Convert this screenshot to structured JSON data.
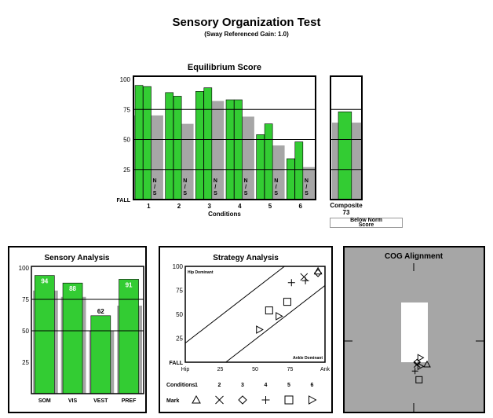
{
  "header": {
    "title": "Sensory Organization Test",
    "subtitle": "(Sway Referenced Gain: 1.0)"
  },
  "colors": {
    "green": "#33cc33",
    "gray": "#a6a6a6",
    "white": "#ffffff",
    "black": "#000000"
  },
  "chart_data": [
    {
      "id": "equilibrium",
      "type": "bar",
      "title": "Equilibrium Score",
      "xlabel": "Conditions",
      "ylabel": "",
      "ylim": [
        0,
        100
      ],
      "y_ticks": [
        "100",
        "75",
        "50",
        "25",
        "FALL"
      ],
      "grid_lines": [
        75,
        50,
        25
      ],
      "categories": [
        "1",
        "2",
        "3",
        "4",
        "5",
        "6"
      ],
      "series": [
        {
          "values": [
            [
              95,
              94
            ],
            [
              89,
              86
            ],
            [
              90,
              93
            ],
            [
              83,
              83
            ],
            [
              54,
              63
            ],
            [
              34,
              48
            ]
          ]
        },
        {
          "values": [
            70,
            63,
            82,
            69,
            45,
            27
          ]
        }
      ],
      "ns_label": "N\n/\nS",
      "composite": {
        "label": "Composite",
        "value": 73,
        "value_text": "73",
        "norm": 64
      },
      "below_norm_label": "Below Norm\nScore"
    },
    {
      "id": "sensory",
      "type": "bar",
      "title": "Sensory Analysis",
      "ylim": [
        0,
        100
      ],
      "y_ticks": [
        "100",
        "75",
        "50",
        "25"
      ],
      "grid_lines": [
        75,
        50
      ],
      "categories": [
        "SOM",
        "VIS",
        "VEST",
        "PREF"
      ],
      "series": [
        {
          "values": [
            94,
            88,
            62,
            91
          ],
          "labels": [
            "94",
            "88",
            "62",
            "91"
          ]
        },
        {
          "values": [
            82,
            77,
            50,
            70
          ]
        }
      ]
    },
    {
      "id": "strategy",
      "type": "scatter",
      "title": "Strategy Analysis",
      "y_ticks": [
        "100",
        "75",
        "50",
        "25",
        "FALL"
      ],
      "x_ticks": [
        "Hip",
        "25",
        "50",
        "75",
        "Ank"
      ],
      "xlim": [
        0,
        100
      ],
      "ylim": [
        0,
        100
      ],
      "hip_label": "Hip Dominant",
      "ankle_label": "Ankle Dominant",
      "conditions_label": "Conditions",
      "mark_label": "Mark",
      "conditions": [
        "1",
        "2",
        "3",
        "4",
        "5",
        "6"
      ],
      "marks": [
        "triangle-up",
        "x",
        "diamond",
        "plus",
        "square",
        "triangle-right"
      ],
      "points": [
        {
          "condition": "1",
          "mark": "triangle-up",
          "x": 95,
          "y": 95
        },
        {
          "condition": "2",
          "mark": "x",
          "x": 85,
          "y": 89
        },
        {
          "condition": "3",
          "mark": "diamond",
          "x": 95,
          "y": 93
        },
        {
          "condition": "4",
          "mark": "plus",
          "x": 76,
          "y": 83
        },
        {
          "condition": "4",
          "mark": "plus",
          "x": 86,
          "y": 85
        },
        {
          "condition": "5",
          "mark": "square",
          "x": 60,
          "y": 54
        },
        {
          "condition": "5",
          "mark": "square",
          "x": 73,
          "y": 63
        },
        {
          "condition": "6",
          "mark": "triangle-right",
          "x": 67,
          "y": 48
        },
        {
          "condition": "6",
          "mark": "triangle-right",
          "x": 53,
          "y": 34
        }
      ]
    },
    {
      "id": "cog",
      "type": "scatter",
      "title": "COG Alignment",
      "points": [
        {
          "mark": "triangle-up",
          "x": 0.2,
          "y": -0.35
        },
        {
          "mark": "x",
          "x": 0.05,
          "y": -0.35
        },
        {
          "mark": "diamond",
          "x": 0.05,
          "y": -0.32
        },
        {
          "mark": "plus",
          "x": 0.02,
          "y": -0.45
        },
        {
          "mark": "square",
          "x": 0.08,
          "y": -0.58
        },
        {
          "mark": "triangle-right",
          "x": 0.1,
          "y": -0.25
        },
        {
          "mark": "triangle-right",
          "x": 0.1,
          "y": -0.38
        }
      ]
    }
  ]
}
